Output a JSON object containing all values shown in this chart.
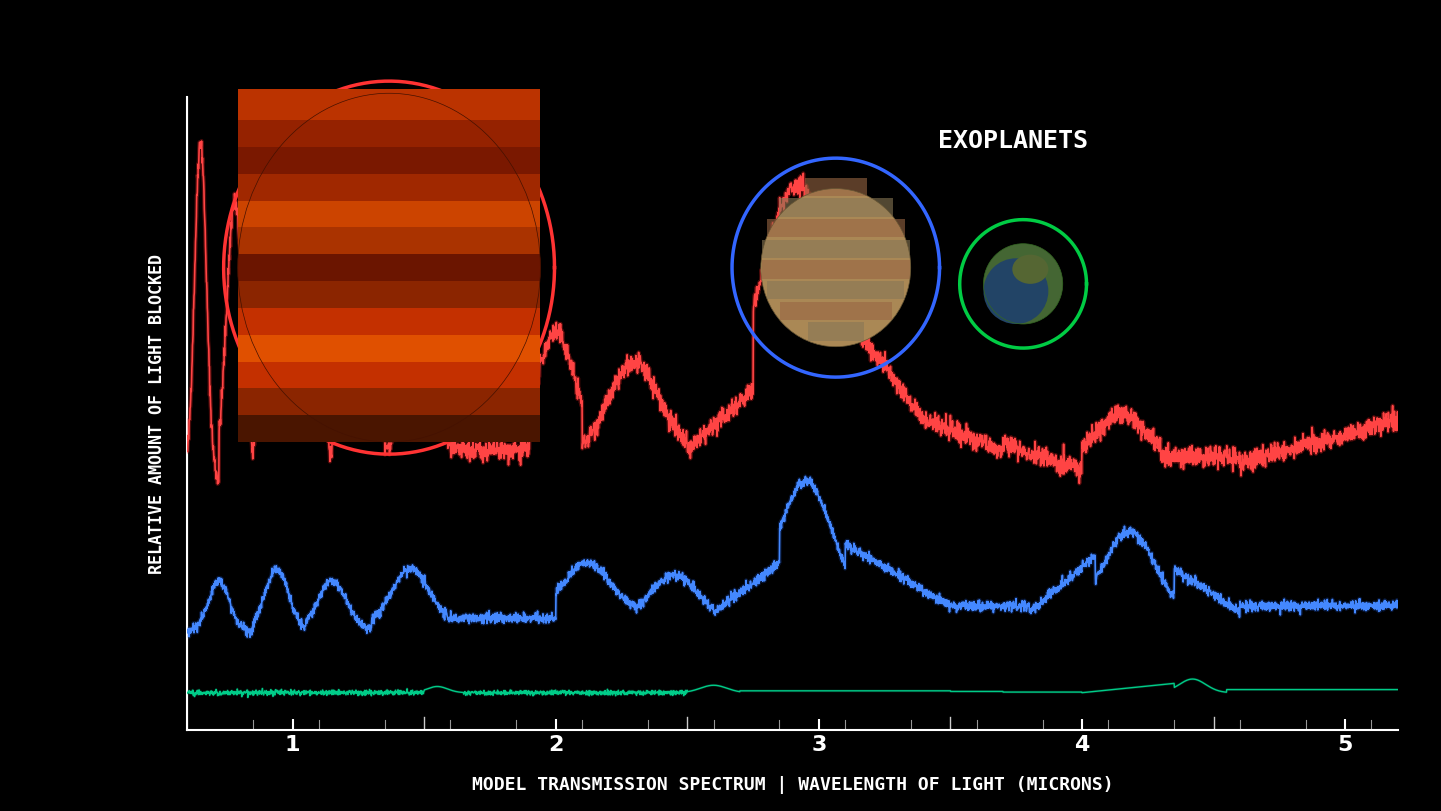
{
  "title": "EXOPLANETS",
  "xlabel": "MODEL TRANSMISSION SPECTRUM | WAVELENGTH OF LIGHT (MICRONS)",
  "ylabel": "RELATIVE AMOUNT OF LIGHT BLOCKED",
  "background_color": "#000000",
  "title_color": "#ffffff",
  "xlabel_color": "#ffffff",
  "ylabel_color": "#ffffff",
  "tick_color": "#ffffff",
  "xlim": [
    0.6,
    5.2
  ],
  "ylim": [
    0.0,
    1.0
  ],
  "xticks": [
    1,
    2,
    3,
    4,
    5
  ],
  "red_color": "#ff4444",
  "blue_color": "#4488ff",
  "green_color": "#00cc88",
  "red_base": 0.38,
  "blue_base": 0.14,
  "green_base": 0.04,
  "figsize": [
    14.41,
    8.11
  ],
  "dpi": 100
}
